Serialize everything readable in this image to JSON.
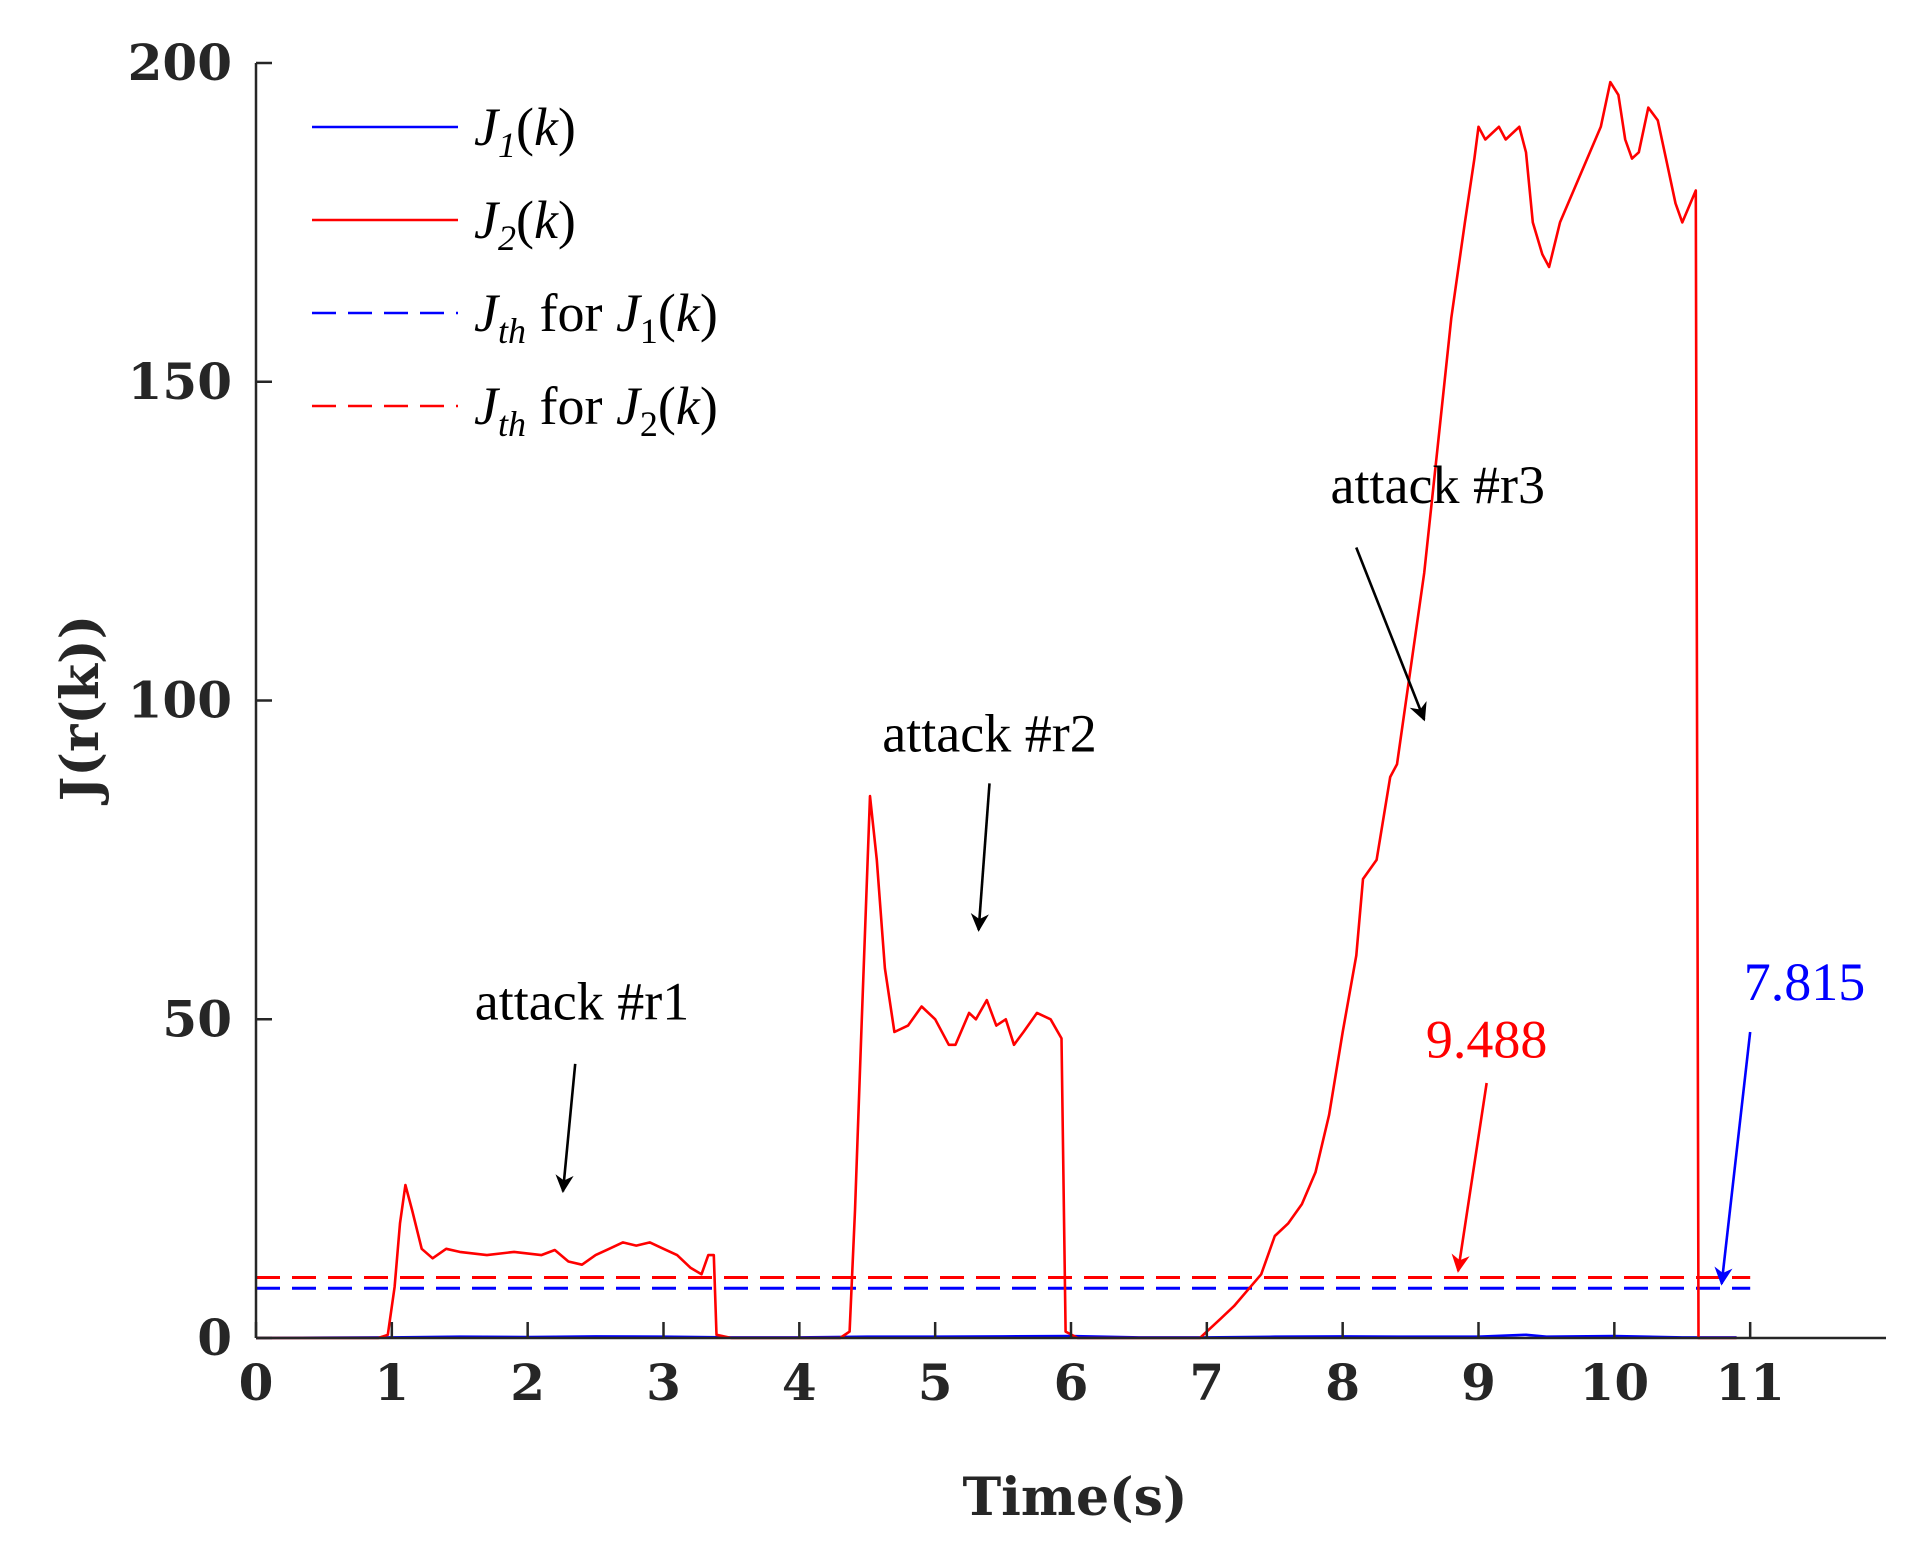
{
  "chart_data": {
    "type": "line",
    "title": "",
    "xlabel": "Time(s)",
    "ylabel": "J(r(k))",
    "xlim": [
      0,
      12
    ],
    "ylim": [
      0,
      200
    ],
    "x_ticks": [
      0,
      1,
      2,
      3,
      4,
      5,
      6,
      7,
      8,
      9,
      10,
      11
    ],
    "y_ticks": [
      0,
      50,
      100,
      150,
      200
    ],
    "grid": false,
    "legend_position": "top-left",
    "series": [
      {
        "name": "J_1(k)",
        "legend": {
          "base": "J",
          "sub": "1",
          "suffix": "(k)"
        },
        "color": "#0000ff",
        "style": "solid",
        "points": [
          [
            0,
            0
          ],
          [
            0.5,
            0.05
          ],
          [
            1.0,
            0.1
          ],
          [
            1.5,
            0.2
          ],
          [
            2.0,
            0.15
          ],
          [
            2.5,
            0.25
          ],
          [
            3.0,
            0.2
          ],
          [
            3.5,
            0.1
          ],
          [
            4.0,
            0.1
          ],
          [
            4.5,
            0.2
          ],
          [
            5.0,
            0.2
          ],
          [
            5.5,
            0.25
          ],
          [
            6.0,
            0.3
          ],
          [
            6.5,
            0.1
          ],
          [
            7.0,
            0.1
          ],
          [
            7.5,
            0.2
          ],
          [
            8.0,
            0.25
          ],
          [
            8.5,
            0.2
          ],
          [
            9.0,
            0.2
          ],
          [
            9.35,
            0.5
          ],
          [
            9.5,
            0.2
          ],
          [
            10.0,
            0.3
          ],
          [
            10.5,
            0.1
          ],
          [
            10.9,
            0.1
          ]
        ]
      },
      {
        "name": "J_2(k)",
        "legend": {
          "base": "J",
          "sub": "2",
          "suffix": "(k)"
        },
        "color": "#ff0000",
        "style": "solid",
        "points": [
          [
            0,
            0
          ],
          [
            0.9,
            0
          ],
          [
            0.97,
            0.5
          ],
          [
            1.02,
            8
          ],
          [
            1.06,
            18
          ],
          [
            1.1,
            24
          ],
          [
            1.15,
            20
          ],
          [
            1.22,
            14
          ],
          [
            1.3,
            12.5
          ],
          [
            1.4,
            14
          ],
          [
            1.5,
            13.5
          ],
          [
            1.7,
            13
          ],
          [
            1.9,
            13.5
          ],
          [
            2.1,
            13
          ],
          [
            2.2,
            13.8
          ],
          [
            2.3,
            12
          ],
          [
            2.4,
            11.5
          ],
          [
            2.5,
            13
          ],
          [
            2.6,
            14
          ],
          [
            2.7,
            15
          ],
          [
            2.8,
            14.5
          ],
          [
            2.9,
            15
          ],
          [
            3.0,
            14
          ],
          [
            3.1,
            13
          ],
          [
            3.2,
            11
          ],
          [
            3.28,
            10
          ],
          [
            3.33,
            13
          ],
          [
            3.37,
            13
          ],
          [
            3.39,
            0.5
          ],
          [
            3.5,
            0
          ],
          [
            4.3,
            0
          ],
          [
            4.37,
            1
          ],
          [
            4.41,
            20
          ],
          [
            4.46,
            50
          ],
          [
            4.52,
            85
          ],
          [
            4.57,
            75
          ],
          [
            4.63,
            58
          ],
          [
            4.7,
            48
          ],
          [
            4.8,
            49
          ],
          [
            4.9,
            52
          ],
          [
            5.0,
            50
          ],
          [
            5.1,
            46
          ],
          [
            5.15,
            46
          ],
          [
            5.25,
            51
          ],
          [
            5.3,
            50
          ],
          [
            5.38,
            53
          ],
          [
            5.45,
            49
          ],
          [
            5.52,
            50
          ],
          [
            5.58,
            46
          ],
          [
            5.65,
            48
          ],
          [
            5.75,
            51
          ],
          [
            5.85,
            50
          ],
          [
            5.93,
            47
          ],
          [
            5.96,
            1
          ],
          [
            6.05,
            0
          ],
          [
            6.95,
            0
          ],
          [
            7.0,
            1
          ],
          [
            7.1,
            3
          ],
          [
            7.2,
            5
          ],
          [
            7.3,
            7.5
          ],
          [
            7.4,
            10
          ],
          [
            7.5,
            16
          ],
          [
            7.6,
            18
          ],
          [
            7.7,
            21
          ],
          [
            7.8,
            26
          ],
          [
            7.9,
            35
          ],
          [
            8.0,
            48
          ],
          [
            8.1,
            60
          ],
          [
            8.15,
            72
          ],
          [
            8.25,
            75
          ],
          [
            8.35,
            88
          ],
          [
            8.4,
            90
          ],
          [
            8.5,
            105
          ],
          [
            8.6,
            120
          ],
          [
            8.7,
            140
          ],
          [
            8.8,
            160
          ],
          [
            8.9,
            175
          ],
          [
            8.97,
            185
          ],
          [
            9.0,
            190
          ],
          [
            9.05,
            188
          ],
          [
            9.15,
            190
          ],
          [
            9.2,
            188
          ],
          [
            9.3,
            190
          ],
          [
            9.35,
            186
          ],
          [
            9.4,
            175
          ],
          [
            9.47,
            170
          ],
          [
            9.52,
            168
          ],
          [
            9.6,
            175
          ],
          [
            9.7,
            180
          ],
          [
            9.8,
            185
          ],
          [
            9.9,
            190
          ],
          [
            9.97,
            197
          ],
          [
            10.03,
            195
          ],
          [
            10.08,
            188
          ],
          [
            10.13,
            185
          ],
          [
            10.18,
            186
          ],
          [
            10.25,
            193
          ],
          [
            10.32,
            191
          ],
          [
            10.38,
            185
          ],
          [
            10.45,
            178
          ],
          [
            10.5,
            175
          ],
          [
            10.56,
            178
          ],
          [
            10.6,
            180
          ],
          [
            10.62,
            0
          ],
          [
            10.7,
            0
          ],
          [
            10.9,
            0
          ]
        ]
      },
      {
        "name": "J_th for J_1(k)",
        "legend": {
          "base": "J",
          "sub": "th",
          "suffix": " for ",
          "ref_base": "J",
          "ref_sub": "1",
          "ref_suffix": "(k)"
        },
        "color": "#0000ff",
        "style": "dashed",
        "points": [
          [
            0,
            7.815
          ],
          [
            11,
            7.815
          ]
        ]
      },
      {
        "name": "J_th for J_2(k)",
        "legend": {
          "base": "J",
          "sub": "th",
          "suffix": " for ",
          "ref_base": "J",
          "ref_sub": "2",
          "ref_suffix": "(k)"
        },
        "color": "#ff0000",
        "style": "dashed",
        "points": [
          [
            0,
            9.488
          ],
          [
            11,
            9.488
          ]
        ]
      }
    ],
    "annotations": [
      {
        "id": "r1",
        "text": "attack #r1",
        "color": "#000000",
        "text_at": [
          2.4,
          50
        ],
        "arrow_from": [
          2.35,
          43
        ],
        "arrow_to": [
          2.26,
          23
        ]
      },
      {
        "id": "r2",
        "text": "attack #r2",
        "color": "#000000",
        "text_at": [
          5.4,
          92
        ],
        "arrow_from": [
          5.4,
          87
        ],
        "arrow_to": [
          5.32,
          64
        ]
      },
      {
        "id": "r3",
        "text": "attack #r3",
        "color": "#000000",
        "text_at": [
          8.7,
          131
        ],
        "arrow_from": [
          8.1,
          124
        ],
        "arrow_to": [
          8.6,
          97
        ]
      },
      {
        "id": "th2",
        "text": "9.488",
        "color": "#ff0000",
        "text_at": [
          9.06,
          44
        ],
        "arrow_from": [
          9.06,
          40
        ],
        "arrow_to": [
          8.85,
          10.5
        ]
      },
      {
        "id": "th1",
        "text": "7.815",
        "color": "#0000ff",
        "text_at": [
          11.4,
          53
        ],
        "arrow_from": [
          11.0,
          48
        ],
        "arrow_to": [
          10.79,
          8.5
        ]
      }
    ]
  }
}
